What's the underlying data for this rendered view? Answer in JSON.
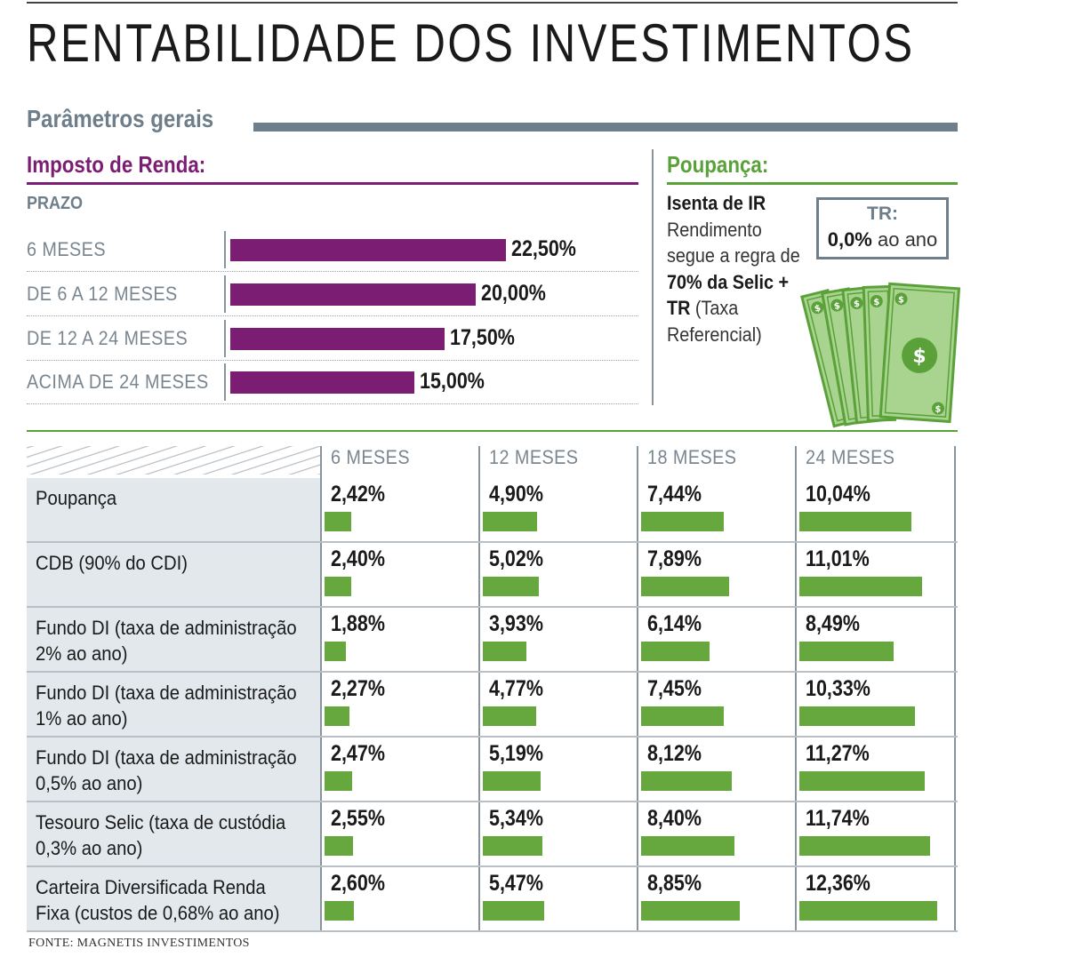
{
  "title": "RENTABILIDADE DOS INVESTIMENTOS",
  "section_heading": "Parâmetros gerais",
  "imposto_renda": {
    "title": "Imposto de Renda:",
    "prazo_label": "PRAZO",
    "rows": [
      {
        "label": "6 MESES",
        "value_label": "22,50%",
        "value": 22.5
      },
      {
        "label": "DE 6 A 12 MESES",
        "value_label": "20,00%",
        "value": 20.0
      },
      {
        "label": "DE 12 A 24 MESES",
        "value_label": "17,50%",
        "value": 17.5
      },
      {
        "label": "ACIMA DE 24 MESES",
        "value_label": "15,00%",
        "value": 15.0
      }
    ]
  },
  "poupanca": {
    "title": "Poupança:",
    "isenta": "Isenta de IR",
    "line1": "Rendimento segue a regra de ",
    "bold1": "70% da Selic + TR",
    "line2": " (Taxa Referencial)",
    "tr_label": "TR:",
    "tr_value_bold": "0,0%",
    "tr_value_rest": " ao ano",
    "money_icon": "money-stack-icon",
    "money_symbol": "$"
  },
  "colors": {
    "purple": "#7b1e73",
    "green": "#66a83e",
    "green_dark": "#5aa13a",
    "slate": "#6e7e8a",
    "row_bg": "#e2e8ec"
  },
  "chart_data": [
    {
      "type": "bar",
      "orientation": "horizontal",
      "title": "Imposto de Renda:",
      "categories": [
        "6 MESES",
        "DE 6 A 12 MESES",
        "DE 12 A 24 MESES",
        "ACIMA DE 24 MESES"
      ],
      "values": [
        22.5,
        20.0,
        17.5,
        15.0
      ],
      "value_labels": [
        "22,50%",
        "20,00%",
        "17,50%",
        "15,00%"
      ],
      "xlabel": "",
      "ylabel": "PRAZO",
      "grid": false
    },
    {
      "type": "bar",
      "orientation": "horizontal",
      "title": "",
      "periods": [
        "6 MESES",
        "12 MESES",
        "18 MESES",
        "24 MESES"
      ],
      "rows": [
        {
          "label": "Poupança",
          "values": [
            2.42,
            4.9,
            7.44,
            10.04
          ],
          "value_labels": [
            "2,42%",
            "4,90%",
            "7,44%",
            "10,04%"
          ]
        },
        {
          "label": "CDB (90% do CDI)",
          "values": [
            2.4,
            5.02,
            7.89,
            11.01
          ],
          "value_labels": [
            "2,40%",
            "5,02%",
            "7,89%",
            "11,01%"
          ]
        },
        {
          "label": "Fundo DI (taxa de administração 2% ao ano)",
          "values": [
            1.88,
            3.93,
            6.14,
            8.49
          ],
          "value_labels": [
            "1,88%",
            "3,93%",
            "6,14%",
            "8,49%"
          ]
        },
        {
          "label": "Fundo DI (taxa de administração 1% ao ano)",
          "values": [
            2.27,
            4.77,
            7.45,
            10.33
          ],
          "value_labels": [
            "2,27%",
            "4,77%",
            "7,45%",
            "10,33%"
          ]
        },
        {
          "label": "Fundo DI (taxa de administração 0,5% ao ano)",
          "values": [
            2.47,
            5.19,
            8.12,
            11.27
          ],
          "value_labels": [
            "2,47%",
            "5,19%",
            "8,12%",
            "11,27%"
          ]
        },
        {
          "label": "Tesouro Selic (taxa de custódia 0,3% ao ano)",
          "values": [
            2.55,
            5.34,
            8.4,
            11.74
          ],
          "value_labels": [
            "2,55%",
            "5,34%",
            "8,40%",
            "11,74%"
          ]
        },
        {
          "label": "Carteira Diversificada Renda Fixa (custos de 0,68% ao ano)",
          "values": [
            2.6,
            5.47,
            8.85,
            12.36
          ],
          "value_labels": [
            "2,60%",
            "5,47%",
            "8,85%",
            "12,36%"
          ]
        }
      ],
      "grid": false,
      "legend": "none"
    }
  ],
  "source": "FONTE: MAGNETIS INVESTIMENTOS"
}
